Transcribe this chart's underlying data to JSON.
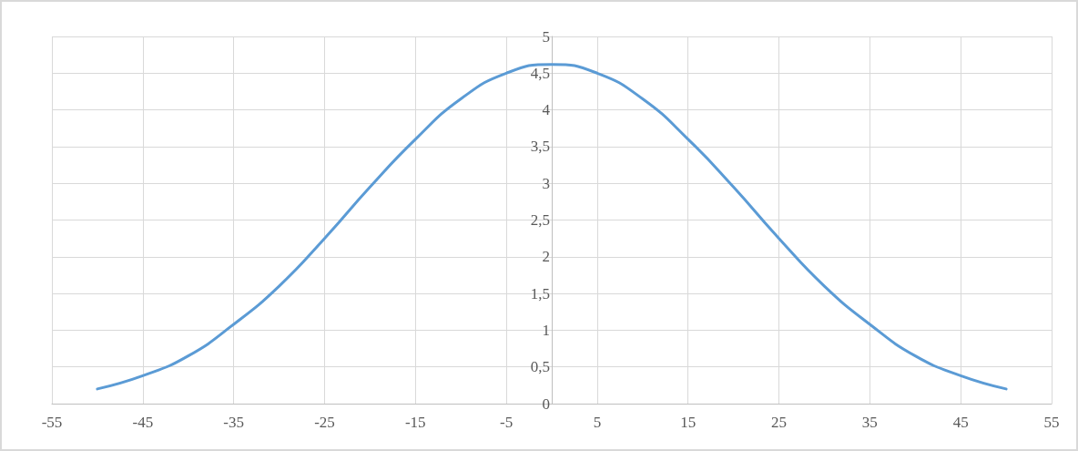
{
  "chart_data": {
    "type": "line",
    "x": [
      -50,
      -45,
      -40,
      -35,
      -30,
      -25,
      -20,
      -15,
      -10,
      -5,
      0,
      5,
      10,
      15,
      20,
      25,
      30,
      35,
      40,
      45,
      50
    ],
    "series": [
      {
        "color": "#5b9bd5",
        "values": [
          0.2,
          0.38,
          0.65,
          1.08,
          1.6,
          2.25,
          2.95,
          3.6,
          4.15,
          4.5,
          4.62,
          4.5,
          4.15,
          3.6,
          2.95,
          2.25,
          1.6,
          1.08,
          0.65,
          0.38,
          0.2
        ]
      }
    ],
    "xlim": [
      -55,
      55
    ],
    "xticks": [
      -55,
      -45,
      -35,
      -25,
      -15,
      -5,
      5,
      15,
      25,
      35,
      45,
      55
    ],
    "ylim": [
      0,
      5
    ],
    "yticks": [
      0,
      {
        "value": 0.5,
        "label": "0,5"
      },
      1,
      {
        "value": 1.5,
        "label": "1,5"
      },
      2,
      {
        "value": 2.5,
        "label": "2,5"
      },
      3,
      {
        "value": 3.5,
        "label": "3,5"
      },
      4,
      {
        "value": 4.5,
        "label": "4,5"
      },
      5
    ],
    "grid": true,
    "marker": "none",
    "line_style": "solid"
  }
}
